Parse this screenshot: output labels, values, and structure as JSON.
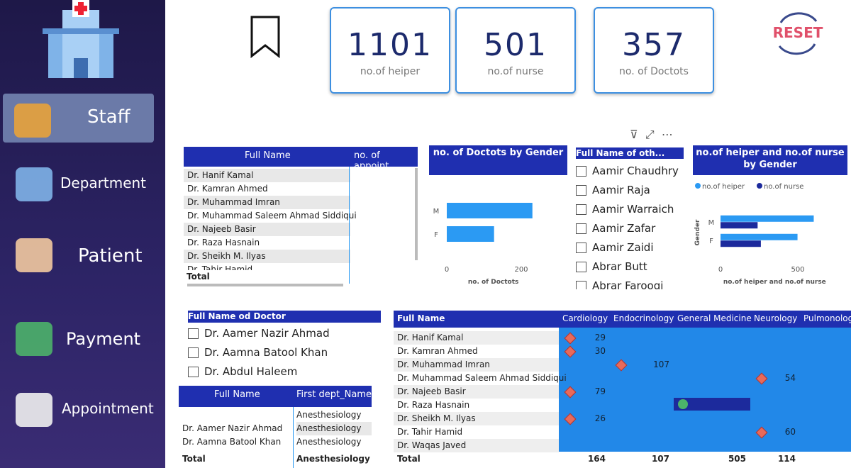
{
  "sidebar": {
    "items": [
      "Staff",
      "Department",
      "Patient",
      "Payment",
      "Appointment"
    ]
  },
  "kpis": [
    {
      "value": 1101,
      "label": "no.of heiper"
    },
    {
      "value": 501,
      "label": "no.of nurse"
    },
    {
      "value": 357,
      "label": "no. of Doctots"
    }
  ],
  "reset": "RESET",
  "doctor_table": {
    "columns": [
      "Full Name",
      "no. of appoint"
    ],
    "rows": [
      "Dr. Hanif Kamal",
      "Dr. Kamran Ahmed",
      "Dr. Muhammad Imran",
      "Dr. Muhammad Saleem Ahmad Siddiqui",
      "Dr. Najeeb Basir",
      "Dr. Raza Hasnain",
      "Dr. Sheikh M. Ilyas",
      "Dr. Tahir Hamid"
    ],
    "total": "Total"
  },
  "chart_data": [
    {
      "type": "bar",
      "orientation": "horizontal",
      "title": "no. of Doctots by Gender",
      "categories": [
        "M",
        "F"
      ],
      "values": [
        230,
        127
      ],
      "color": "#2b9af3",
      "xlim": [
        0,
        250
      ],
      "xticks": [
        0,
        200
      ],
      "xlabel": "no. of Doctots"
    },
    {
      "type": "bar",
      "orientation": "horizontal",
      "title": "no.of heiper and no.of nurse by Gender",
      "categories": [
        "M",
        "F"
      ],
      "series": [
        {
          "name": "no.of heiper",
          "color": "#2b9af3",
          "values": [
            603,
            498
          ]
        },
        {
          "name": "no.of nurse",
          "color": "#1c2a9c",
          "values": [
            240,
            261
          ]
        }
      ],
      "xlim": [
        0,
        700
      ],
      "xticks": [
        0,
        500
      ],
      "xlabel": "no.of heiper and no.of nurse",
      "ylabel": "Gender",
      "legend": "top-left"
    }
  ],
  "other_slicer": {
    "title": "Full Name of oth...",
    "items": [
      "Aamir Chaudhry",
      "Aamir Raja",
      "Aamir Warraich",
      "Aamir Zafar",
      "Aamir Zaidi",
      "Abrar Butt",
      "Abrar Farooqi"
    ]
  },
  "doctor_slicer": {
    "title": "Full Name od Doctor",
    "items": [
      "Dr. Aamer Nazir Ahmad",
      "Dr. Aamna Batool Khan",
      "Dr. Abdul Haleem"
    ]
  },
  "dept_table": {
    "columns": [
      "Full Name",
      "First dept_Name"
    ],
    "rows": [
      {
        "dept": "Anesthesiology"
      },
      {
        "name": "Dr. Aamer Nazir Ahmad",
        "dept": "Anesthesiology"
      },
      {
        "name": "Dr. Aamna Batool Khan",
        "dept": "Anesthesiology"
      }
    ],
    "total": "Total",
    "total_dept": "Anesthesiology"
  },
  "matrix": {
    "columns": [
      "Full Name",
      "Cardiology",
      "Endocrinology",
      "General Medicine",
      "Neurology",
      "Pulmonology"
    ],
    "rows": [
      {
        "name": "Dr. Hanif Kamal",
        "cells": [
          29,
          null,
          null,
          null,
          null
        ]
      },
      {
        "name": "Dr. Kamran Ahmed",
        "cells": [
          30,
          null,
          null,
          null,
          null
        ]
      },
      {
        "name": "Dr. Muhammad Imran",
        "cells": [
          null,
          107,
          null,
          null,
          null
        ]
      },
      {
        "name": "Dr. Muhammad Saleem Ahmad Siddiqui",
        "cells": [
          null,
          null,
          null,
          54,
          null
        ]
      },
      {
        "name": "Dr. Najeeb Basir",
        "cells": [
          79,
          null,
          null,
          null,
          null
        ]
      },
      {
        "name": "Dr. Raza Hasnain",
        "cells": [
          null,
          null,
          null,
          null,
          null
        ]
      },
      {
        "name": "Dr. Sheikh M. Ilyas",
        "cells": [
          26,
          null,
          null,
          null,
          null
        ]
      },
      {
        "name": "Dr. Tahir Hamid",
        "cells": [
          null,
          null,
          null,
          60,
          null
        ]
      },
      {
        "name": "Dr. Waqas Javed",
        "cells": [
          null,
          null,
          null,
          null,
          null
        ]
      }
    ],
    "total": {
      "name": "Total",
      "cells": [
        164,
        107,
        505,
        114,
        null
      ]
    }
  }
}
